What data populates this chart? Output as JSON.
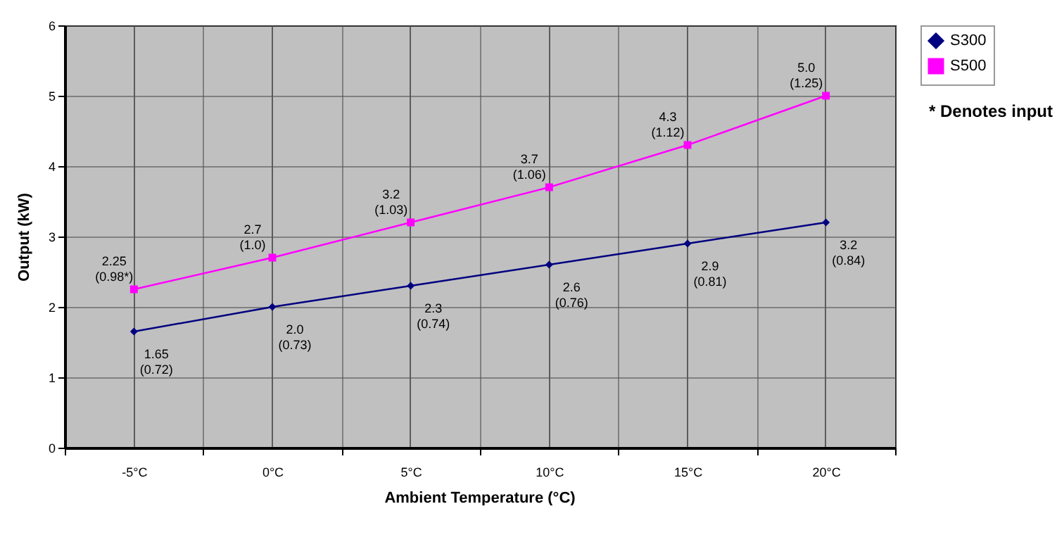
{
  "chart_data": {
    "type": "line",
    "xlabel": "Ambient Temperature (°C)",
    "ylabel": "Output (kW)",
    "categories": [
      "-5°C",
      "0°C",
      "5°C",
      "10°C",
      "15°C",
      "20°C"
    ],
    "series": [
      {
        "name": "S300",
        "color": "#000080",
        "marker": "diamond",
        "values": [
          1.65,
          2.0,
          2.3,
          2.6,
          2.9,
          3.2
        ],
        "value_labels": [
          "1.65\n(0.72)",
          "2.0\n(0.73)",
          "2.3\n(0.74)",
          "2.6\n(0.76)",
          "2.9\n(0.81)",
          "3.2\n(0.84)"
        ]
      },
      {
        "name": "S500",
        "color": "#ff00ff",
        "marker": "square",
        "values": [
          2.25,
          2.7,
          3.2,
          3.7,
          4.3,
          5.0
        ],
        "value_labels": [
          "2.25\n(0.98*)",
          "2.7\n(1.0)",
          "3.2\n(1.03)",
          "3.7\n(1.06)",
          "4.3\n(1.12)",
          "5.0\n(1.25)"
        ]
      }
    ],
    "ylim": [
      0,
      6
    ],
    "yticks": [
      0,
      1,
      2,
      3,
      4,
      5,
      6
    ],
    "grid": true,
    "legend": "top right",
    "annotations": [
      "* Denotes input"
    ]
  }
}
